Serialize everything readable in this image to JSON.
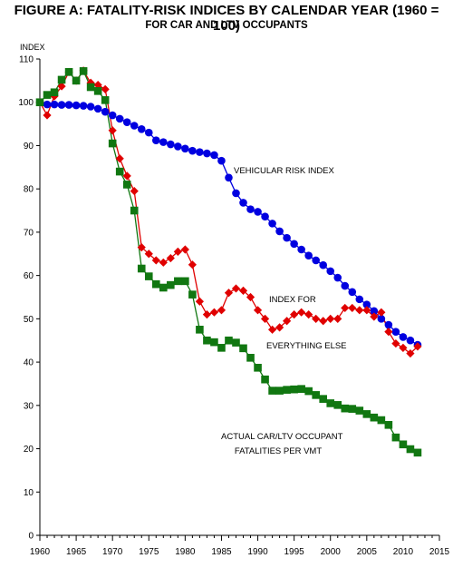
{
  "chart_data": {
    "type": "line",
    "title": "FIGURE A: FATALITY-RISK INDICES BY CALENDAR YEAR (1960 = 100)",
    "subtitle": "FOR CAR AND LTV OCCUPANTS",
    "ylabel": "INDEX",
    "xlabel": "",
    "xlim": [
      1960,
      2015
    ],
    "ylim": [
      0,
      110
    ],
    "x_ticks": [
      1960,
      1965,
      1970,
      1975,
      1980,
      1985,
      1990,
      1995,
      2000,
      2005,
      2010,
      2015
    ],
    "y_ticks": [
      0,
      10,
      20,
      30,
      40,
      50,
      60,
      70,
      80,
      90,
      100,
      110
    ],
    "grid": false,
    "legend": "none",
    "annotations": [
      {
        "text": "VEHICULAR RISK INDEX",
        "series": "vehicular"
      },
      {
        "text": "INDEX FOR",
        "series": "else"
      },
      {
        "text": "EVERYTHING ELSE",
        "series": "else"
      },
      {
        "text": "ACTUAL CAR/LTV OCCUPANT",
        "series": "actual"
      },
      {
        "text": "FATALITIES PER VMT",
        "series": "actual"
      }
    ],
    "x": [
      1960,
      1961,
      1962,
      1963,
      1964,
      1965,
      1966,
      1967,
      1968,
      1969,
      1970,
      1971,
      1972,
      1973,
      1974,
      1975,
      1976,
      1977,
      1978,
      1979,
      1980,
      1981,
      1982,
      1983,
      1984,
      1985,
      1986,
      1987,
      1988,
      1989,
      1990,
      1991,
      1992,
      1993,
      1994,
      1995,
      1996,
      1997,
      1998,
      1999,
      2000,
      2001,
      2002,
      2003,
      2004,
      2005,
      2006,
      2007,
      2008,
      2009,
      2010,
      2011,
      2012
    ],
    "series": [
      {
        "key": "vehicular",
        "color": "#0000e0",
        "marker": "circle",
        "values": [
          100,
          99.5,
          99.5,
          99.4,
          99.4,
          99.3,
          99.2,
          99,
          98.5,
          97.8,
          97,
          96.2,
          95.4,
          94.6,
          93.8,
          93,
          91.2,
          90.8,
          90.3,
          89.8,
          89.3,
          88.8,
          88.5,
          88.2,
          87.8,
          86.5,
          82.6,
          79,
          76.8,
          75.3,
          74.7,
          73.6,
          72,
          70.2,
          68.7,
          67.3,
          66,
          64.6,
          63.5,
          62.4,
          61,
          59.5,
          57.6,
          56.2,
          54.5,
          53.3,
          51.8,
          50,
          48.6,
          47,
          45.8,
          45,
          44
        ]
      },
      {
        "key": "else",
        "color": "#e00000",
        "marker": "diamond",
        "values": [
          100,
          97,
          101.4,
          103.7,
          107,
          105,
          107.3,
          104.5,
          104,
          103,
          93.5,
          87,
          83,
          79.5,
          66.5,
          65,
          63.5,
          63,
          64,
          65.5,
          66,
          62.5,
          54,
          51,
          51.5,
          52,
          56,
          57,
          56.5,
          55,
          52,
          50,
          47.5,
          48,
          49.5,
          51,
          51.5,
          51,
          50,
          49.5,
          50,
          50,
          52.5,
          52.5,
          52,
          52,
          50.5,
          51.5,
          47,
          44.3,
          43.3,
          42,
          43.6
        ]
      },
      {
        "key": "actual",
        "color": "#117711",
        "marker": "square",
        "values": [
          100,
          101.7,
          102.3,
          105.2,
          107,
          105,
          107.2,
          103.5,
          102.6,
          100.5,
          90.5,
          84,
          81,
          75,
          61.6,
          59.8,
          58,
          57.2,
          57.8,
          58.7,
          58.7,
          55.6,
          47.5,
          45,
          44.6,
          43.3,
          45,
          44.5,
          43.2,
          41,
          38.7,
          36,
          33.4,
          33.4,
          33.6,
          33.7,
          33.8,
          33.3,
          32.4,
          31.5,
          30.5,
          30.1,
          29.3,
          29.2,
          28.8,
          28,
          27.2,
          26.6,
          25.5,
          22.6,
          21,
          19.9,
          19.1
        ]
      }
    ]
  }
}
